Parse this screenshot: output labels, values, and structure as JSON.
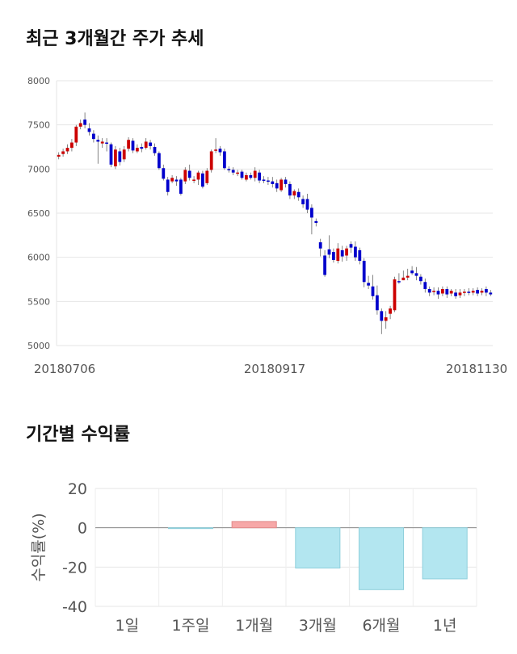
{
  "section1": {
    "title": "최근 3개월간 주가 추세"
  },
  "section2": {
    "title": "기간별 수익률"
  },
  "chart_data": [
    {
      "type": "candlestick",
      "title": "최근 3개월간 주가 추세",
      "ylim": [
        5000,
        8000
      ],
      "yticks": [
        "8000",
        "7500",
        "7000",
        "6500",
        "6000",
        "5500",
        "5000"
      ],
      "xtick_labels": [
        "20180706",
        "20180917",
        "20181130"
      ],
      "grid": true,
      "up_color": "#cc0000",
      "down_color": "#0000cc",
      "candles": [
        [
          7140,
          7160,
          7110,
          7190
        ],
        [
          7170,
          7200,
          7140,
          7230
        ],
        [
          7200,
          7240,
          7170,
          7280
        ],
        [
          7240,
          7300,
          7200,
          7340
        ],
        [
          7300,
          7480,
          7260,
          7500
        ],
        [
          7480,
          7520,
          7450,
          7560
        ],
        [
          7560,
          7500,
          7460,
          7640
        ],
        [
          7460,
          7420,
          7380,
          7520
        ],
        [
          7400,
          7340,
          7300,
          7440
        ],
        [
          7330,
          7310,
          7060,
          7380
        ],
        [
          7290,
          7310,
          7240,
          7350
        ],
        [
          7300,
          7290,
          7200,
          7350
        ],
        [
          7280,
          7050,
          7020,
          7300
        ],
        [
          7030,
          7220,
          7000,
          7260
        ],
        [
          7200,
          7080,
          7040,
          7240
        ],
        [
          7110,
          7220,
          7080,
          7260
        ],
        [
          7230,
          7330,
          7200,
          7360
        ],
        [
          7320,
          7210,
          7180,
          7350
        ],
        [
          7200,
          7240,
          7180,
          7280
        ],
        [
          7250,
          7230,
          7190,
          7290
        ],
        [
          7240,
          7310,
          7220,
          7350
        ],
        [
          7300,
          7260,
          7220,
          7330
        ],
        [
          7250,
          7180,
          7150,
          7290
        ],
        [
          7180,
          7010,
          6990,
          7200
        ],
        [
          7010,
          6890,
          6870,
          7050
        ],
        [
          6880,
          6740,
          6700,
          6910
        ],
        [
          6860,
          6900,
          6840,
          6930
        ],
        [
          6880,
          6860,
          6810,
          6920
        ],
        [
          6880,
          6720,
          6700,
          6900
        ],
        [
          6860,
          6990,
          6830,
          7020
        ],
        [
          6980,
          6900,
          6870,
          7050
        ],
        [
          6880,
          6880,
          6840,
          6920
        ],
        [
          6880,
          6960,
          6820,
          6980
        ],
        [
          6950,
          6800,
          6780,
          6980
        ],
        [
          6840,
          6980,
          6820,
          7010
        ],
        [
          6990,
          7200,
          6960,
          7220
        ],
        [
          7210,
          7220,
          7180,
          7350
        ],
        [
          7230,
          7190,
          7150,
          7260
        ],
        [
          7200,
          7010,
          6990,
          7230
        ],
        [
          7000,
          6990,
          6960,
          7030
        ],
        [
          6990,
          6960,
          6930,
          7020
        ],
        [
          6960,
          6960,
          6920,
          6990
        ],
        [
          6970,
          6900,
          6880,
          6990
        ],
        [
          6880,
          6930,
          6860,
          6960
        ],
        [
          6930,
          6900,
          6880,
          6960
        ],
        [
          6900,
          6980,
          6860,
          7020
        ],
        [
          6960,
          6870,
          6840,
          6990
        ],
        [
          6880,
          6870,
          6840,
          6920
        ],
        [
          6870,
          6860,
          6820,
          6910
        ],
        [
          6860,
          6830,
          6790,
          6910
        ],
        [
          6840,
          6780,
          6740,
          6880
        ],
        [
          6760,
          6880,
          6740,
          6900
        ],
        [
          6880,
          6830,
          6790,
          6910
        ],
        [
          6830,
          6700,
          6660,
          6860
        ],
        [
          6700,
          6750,
          6660,
          6770
        ],
        [
          6740,
          6680,
          6640,
          6780
        ],
        [
          6660,
          6600,
          6560,
          6700
        ],
        [
          6660,
          6540,
          6500,
          6720
        ],
        [
          6560,
          6450,
          6260,
          6600
        ],
        [
          6410,
          6390,
          6350,
          6440
        ],
        [
          6170,
          6100,
          6010,
          6210
        ],
        [
          6020,
          5800,
          5780,
          6080
        ],
        [
          6090,
          6030,
          5990,
          6250
        ],
        [
          6060,
          5970,
          5940,
          6100
        ],
        [
          5960,
          6100,
          5930,
          6160
        ],
        [
          6080,
          6010,
          5950,
          6130
        ],
        [
          6020,
          6100,
          5960,
          6130
        ],
        [
          6150,
          6110,
          6050,
          6180
        ],
        [
          6120,
          6000,
          5960,
          6180
        ],
        [
          6080,
          5960,
          5920,
          6110
        ],
        [
          5960,
          5720,
          5660,
          5990
        ],
        [
          5710,
          5680,
          5640,
          5790
        ],
        [
          5670,
          5560,
          5520,
          5800
        ],
        [
          5570,
          5400,
          5350,
          5680
        ],
        [
          5390,
          5280,
          5130,
          5420
        ],
        [
          5280,
          5320,
          5190,
          5390
        ],
        [
          5360,
          5420,
          5300,
          5450
        ],
        [
          5400,
          5750,
          5380,
          5780
        ],
        [
          5730,
          5720,
          5700,
          5820
        ],
        [
          5740,
          5770,
          5740,
          5850
        ],
        [
          5770,
          5790,
          5740,
          5870
        ],
        [
          5850,
          5820,
          5800,
          5900
        ],
        [
          5820,
          5790,
          5740,
          5890
        ],
        [
          5780,
          5730,
          5690,
          5810
        ],
        [
          5720,
          5640,
          5600,
          5760
        ],
        [
          5640,
          5600,
          5560,
          5670
        ],
        [
          5610,
          5620,
          5570,
          5660
        ],
        [
          5620,
          5580,
          5530,
          5660
        ],
        [
          5590,
          5640,
          5560,
          5670
        ],
        [
          5640,
          5580,
          5540,
          5670
        ],
        [
          5590,
          5620,
          5560,
          5640
        ],
        [
          5600,
          5560,
          5530,
          5640
        ],
        [
          5570,
          5600,
          5540,
          5640
        ],
        [
          5600,
          5610,
          5560,
          5640
        ],
        [
          5610,
          5600,
          5570,
          5650
        ],
        [
          5600,
          5620,
          5570,
          5650
        ],
        [
          5630,
          5590,
          5560,
          5660
        ],
        [
          5600,
          5620,
          5570,
          5650
        ],
        [
          5640,
          5600,
          5560,
          5670
        ],
        [
          5600,
          5580,
          5560,
          5630
        ]
      ]
    },
    {
      "type": "bar",
      "title": "기간별 수익률",
      "categories": [
        "1일",
        "1주일",
        "1개월",
        "3개월",
        "6개월",
        "1년"
      ],
      "values": [
        0,
        -0.3,
        3.2,
        -20.5,
        -31.5,
        -26.0
      ],
      "ylabel": "수익률(%)",
      "ylim": [
        -40,
        20
      ],
      "yticks": [
        "20",
        "0",
        "-20",
        "-40"
      ],
      "grid": true,
      "positive_color": "#f7a8a8",
      "negative_color": "#b3e6f0"
    }
  ]
}
